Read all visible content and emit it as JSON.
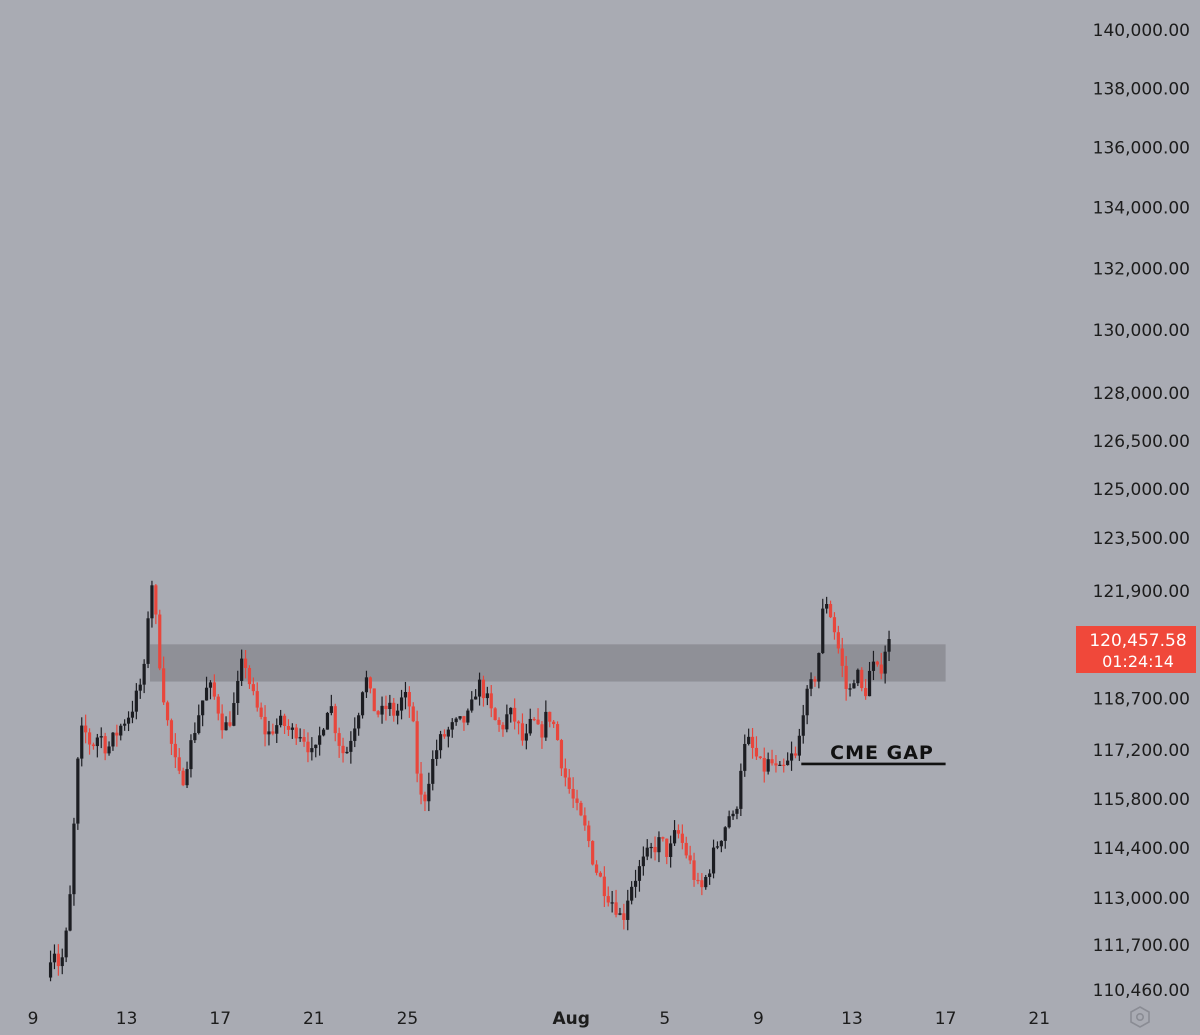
{
  "chart_data": {
    "type": "candlestick",
    "title": "",
    "xlabel": "",
    "ylabel": "",
    "y_scale": "log",
    "ylim": [
      110300,
      140500
    ],
    "grid": false,
    "y_ticks": [
      140000,
      138000,
      136000,
      134000,
      132000,
      130000,
      128000,
      126500,
      125000,
      123500,
      121900,
      118700,
      117200,
      115800,
      114400,
      113000,
      111700,
      110460
    ],
    "y_tick_labels": [
      "140,000.00",
      "138,000.00",
      "136,000.00",
      "134,000.00",
      "132,000.00",
      "130,000.00",
      "128,000.00",
      "126,500.00",
      "125,000.00",
      "123,500.00",
      "121,900.00",
      "118,700.00",
      "117,200.00",
      "115,800.00",
      "114,400.00",
      "113,000.00",
      "111,700.00",
      "110,460.00"
    ],
    "x_tick_labels": [
      {
        "label": "9",
        "date": "2025-07-09",
        "bold": false
      },
      {
        "label": "13",
        "date": "2025-07-13",
        "bold": false
      },
      {
        "label": "17",
        "date": "2025-07-17",
        "bold": false
      },
      {
        "label": "21",
        "date": "2025-07-21",
        "bold": false
      },
      {
        "label": "25",
        "date": "2025-07-25",
        "bold": false
      },
      {
        "label": "Aug",
        "date": "2025-08-01",
        "bold": true
      },
      {
        "label": "5",
        "date": "2025-08-05",
        "bold": false
      },
      {
        "label": "9",
        "date": "2025-08-09",
        "bold": false
      },
      {
        "label": "13",
        "date": "2025-08-13",
        "bold": false
      },
      {
        "label": "17",
        "date": "2025-08-17",
        "bold": false
      },
      {
        "label": "21",
        "date": "2025-08-21",
        "bold": false
      }
    ],
    "x_start": "2025-07-09",
    "candle_interval_hours": 4,
    "price_path": [
      [
        "2025-07-09T18:00",
        110800
      ],
      [
        "2025-07-10T00:00",
        111800
      ],
      [
        "2025-07-10T06:00",
        111200
      ],
      [
        "2025-07-10T12:00",
        111400
      ],
      [
        "2025-07-10T18:00",
        113000
      ],
      [
        "2025-07-11T00:00",
        116000
      ],
      [
        "2025-07-11T04:00",
        117600
      ],
      [
        "2025-07-11T08:00",
        117800
      ],
      [
        "2025-07-11T16:00",
        117300
      ],
      [
        "2025-07-12T00:00",
        117700
      ],
      [
        "2025-07-12T08:00",
        117200
      ],
      [
        "2025-07-12T16:00",
        117600
      ],
      [
        "2025-07-13T00:00",
        118000
      ],
      [
        "2025-07-13T08:00",
        118300
      ],
      [
        "2025-07-13T16:00",
        118900
      ],
      [
        "2025-07-14T00:00",
        119700
      ],
      [
        "2025-07-14T04:00",
        122700
      ],
      [
        "2025-07-14T08:00",
        121600
      ],
      [
        "2025-07-14T16:00",
        119200
      ],
      [
        "2025-07-15T00:00",
        117600
      ],
      [
        "2025-07-15T06:00",
        116800
      ],
      [
        "2025-07-15T12:00",
        116200
      ],
      [
        "2025-07-15T18:00",
        116900
      ],
      [
        "2025-07-16T00:00",
        117600
      ],
      [
        "2025-07-16T08:00",
        118500
      ],
      [
        "2025-07-16T16:00",
        119100
      ],
      [
        "2025-07-17T00:00",
        118600
      ],
      [
        "2025-07-17T08:00",
        117800
      ],
      [
        "2025-07-17T16:00",
        118200
      ],
      [
        "2025-07-18T00:00",
        119300
      ],
      [
        "2025-07-18T04:00",
        120000
      ],
      [
        "2025-07-18T12:00",
        118900
      ],
      [
        "2025-07-18T20:00",
        118200
      ],
      [
        "2025-07-19T04:00",
        117600
      ],
      [
        "2025-07-19T12:00",
        117900
      ],
      [
        "2025-07-19T20:00",
        118000
      ],
      [
        "2025-07-20T04:00",
        117700
      ],
      [
        "2025-07-20T12:00",
        117800
      ],
      [
        "2025-07-20T20:00",
        117500
      ],
      [
        "2025-07-21T04:00",
        116900
      ],
      [
        "2025-07-21T12:00",
        117800
      ],
      [
        "2025-07-21T20:00",
        118700
      ],
      [
        "2025-07-22T04:00",
        117600
      ],
      [
        "2025-07-22T12:00",
        117000
      ],
      [
        "2025-07-22T20:00",
        117800
      ],
      [
        "2025-07-23T04:00",
        118600
      ],
      [
        "2025-07-23T08:00",
        119500
      ],
      [
        "2025-07-23T16:00",
        118500
      ],
      [
        "2025-07-24T00:00",
        118200
      ],
      [
        "2025-07-24T08:00",
        118500
      ],
      [
        "2025-07-24T16:00",
        118200
      ],
      [
        "2025-07-25T00:00",
        118800
      ],
      [
        "2025-07-25T08:00",
        118400
      ],
      [
        "2025-07-25T16:00",
        116000
      ],
      [
        "2025-07-25T20:00",
        115600
      ],
      [
        "2025-07-26T04:00",
        116700
      ],
      [
        "2025-07-26T12:00",
        117400
      ],
      [
        "2025-07-26T20:00",
        117700
      ],
      [
        "2025-07-27T04:00",
        117900
      ],
      [
        "2025-07-27T12:00",
        118000
      ],
      [
        "2025-07-27T20:00",
        118200
      ],
      [
        "2025-07-28T04:00",
        119200
      ],
      [
        "2025-07-28T12:00",
        118800
      ],
      [
        "2025-07-28T20:00",
        118100
      ],
      [
        "2025-07-29T04:00",
        117800
      ],
      [
        "2025-07-29T12:00",
        118300
      ],
      [
        "2025-07-29T20:00",
        118000
      ],
      [
        "2025-07-30T04:00",
        117300
      ],
      [
        "2025-07-30T12:00",
        118100
      ],
      [
        "2025-07-30T20:00",
        117600
      ],
      [
        "2025-07-31T04:00",
        118300
      ],
      [
        "2025-07-31T12:00",
        117800
      ],
      [
        "2025-07-31T20:00",
        116600
      ],
      [
        "2025-08-01T04:00",
        115900
      ],
      [
        "2025-08-01T12:00",
        115300
      ],
      [
        "2025-08-01T20:00",
        114800
      ],
      [
        "2025-08-02T04:00",
        113900
      ],
      [
        "2025-08-02T12:00",
        113400
      ],
      [
        "2025-08-02T20:00",
        113000
      ],
      [
        "2025-08-03T04:00",
        112700
      ],
      [
        "2025-08-03T08:00",
        112300
      ],
      [
        "2025-08-03T16:00",
        113300
      ],
      [
        "2025-08-04T00:00",
        113700
      ],
      [
        "2025-08-04T08:00",
        114100
      ],
      [
        "2025-08-04T16:00",
        114400
      ],
      [
        "2025-08-05T00:00",
        114600
      ],
      [
        "2025-08-05T08:00",
        114200
      ],
      [
        "2025-08-05T16:00",
        114900
      ],
      [
        "2025-08-06T00:00",
        114400
      ],
      [
        "2025-08-06T08:00",
        113800
      ],
      [
        "2025-08-06T16:00",
        113100
      ],
      [
        "2025-08-07T00:00",
        113700
      ],
      [
        "2025-08-07T08:00",
        114400
      ],
      [
        "2025-08-07T16:00",
        114900
      ],
      [
        "2025-08-08T00:00",
        115500
      ],
      [
        "2025-08-08T04:00",
        114900
      ],
      [
        "2025-08-08T08:00",
        116500
      ],
      [
        "2025-08-08T16:00",
        117500
      ],
      [
        "2025-08-09T00:00",
        117100
      ],
      [
        "2025-08-09T08:00",
        116600
      ],
      [
        "2025-08-09T16:00",
        116900
      ],
      [
        "2025-08-10T00:00",
        116500
      ],
      [
        "2025-08-10T08:00",
        116700
      ],
      [
        "2025-08-10T16:00",
        117100
      ],
      [
        "2025-08-10T20:00",
        116800
      ],
      [
        "2025-08-11T00:00",
        118300
      ],
      [
        "2025-08-11T08:00",
        118900
      ],
      [
        "2025-08-11T16:00",
        119500
      ],
      [
        "2025-08-12T00:00",
        121800
      ],
      [
        "2025-08-12T08:00",
        121000
      ],
      [
        "2025-08-12T16:00",
        119900
      ],
      [
        "2025-08-13T00:00",
        118700
      ],
      [
        "2025-08-13T08:00",
        119600
      ],
      [
        "2025-08-13T16:00",
        118700
      ],
      [
        "2025-08-14T00:00",
        119700
      ],
      [
        "2025-08-14T08:00",
        119400
      ],
      [
        "2025-08-14T16:00",
        120457.58
      ]
    ],
    "resistance_zone": {
      "from": "2025-07-14T00:00",
      "to": "2025-08-17T00:00",
      "low": 119200,
      "high": 120300,
      "color": "#8d8e96"
    },
    "gap_line": {
      "from": "2025-08-10T20:00",
      "to": "2025-08-17T00:00",
      "price": 116800
    },
    "current_price": {
      "price_label": "120,457.58",
      "countdown": "01:24:14",
      "price": 120457.58,
      "color": "#f0483a"
    },
    "colors": {
      "up": "#1c1d22",
      "down": "#e8463c",
      "background": "#a9abb3",
      "axis_text": "#1c1c1c"
    }
  },
  "annotations": {
    "cme_gap_label": "CME GAP"
  },
  "footer": {
    "settings_icon": "settings-icon"
  }
}
